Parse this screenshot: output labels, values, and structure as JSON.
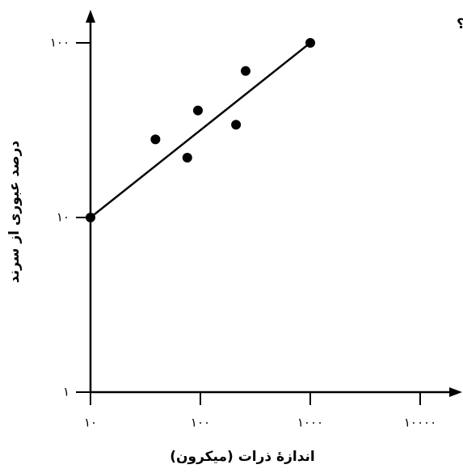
{
  "chart_data": {
    "type": "scatter",
    "title": "k کدام است؟",
    "xlabel": "اندازهٔ ذرات (میکرون)",
    "ylabel": "درصد عبوری از سرند",
    "xscale": "log",
    "yscale": "log",
    "xlim": [
      10,
      10000
    ],
    "ylim": [
      1,
      100
    ],
    "xticks": [
      {
        "value": 10,
        "label": "۱۰"
      },
      {
        "value": 100,
        "label": "۱۰۰"
      },
      {
        "value": 1000,
        "label": "۱۰۰۰"
      },
      {
        "value": 10000,
        "label": "۱۰۰۰۰"
      }
    ],
    "yticks": [
      {
        "value": 1,
        "label": "۱"
      },
      {
        "value": 10,
        "label": "۱۰"
      },
      {
        "value": 100,
        "label": "۱۰۰"
      }
    ],
    "color": "#000000",
    "points": {
      "x": [
        10,
        39,
        76,
        95,
        211,
        258,
        1000
      ],
      "y": [
        10,
        28,
        22,
        41,
        34,
        69,
        100
      ]
    },
    "fit_line": {
      "x": [
        10,
        1000
      ],
      "y": [
        10,
        100
      ]
    }
  }
}
